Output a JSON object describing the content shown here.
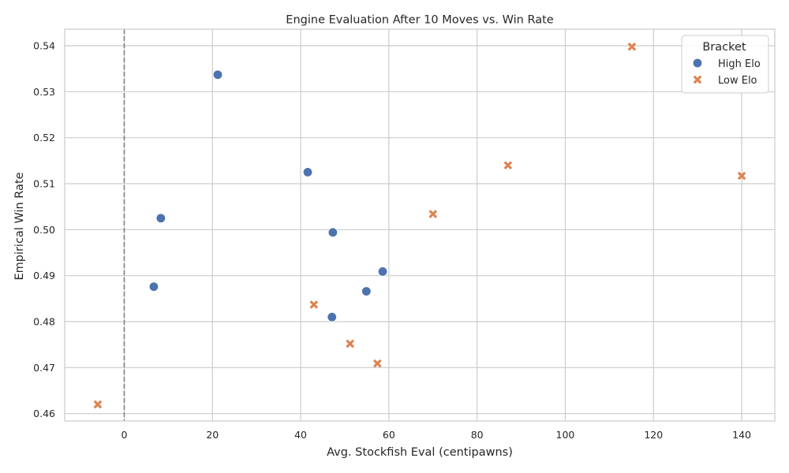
{
  "chart_data": {
    "type": "scatter",
    "title": "Engine Evaluation After 10 Moves vs. Win Rate",
    "xlabel": "Avg. Stockfish Eval (centipawns)",
    "ylabel": "Empirical Win Rate",
    "xlim": [
      -13.5,
      147.5
    ],
    "ylim": [
      0.4584,
      0.5436
    ],
    "xticks": [
      0,
      20,
      40,
      60,
      80,
      100,
      120,
      140
    ],
    "yticks": [
      0.46,
      0.47,
      0.48,
      0.49,
      0.5,
      0.51,
      0.52,
      0.53,
      0.54
    ],
    "xtick_labels": [
      "0",
      "20",
      "40",
      "60",
      "80",
      "100",
      "120",
      "140"
    ],
    "ytick_labels": [
      "0.46",
      "0.47",
      "0.48",
      "0.49",
      "0.50",
      "0.51",
      "0.52",
      "0.53",
      "0.54"
    ],
    "grid": true,
    "reference_line": {
      "x": 0,
      "style": "dashed",
      "color": "#808080"
    },
    "legend": {
      "title": "Bracket",
      "placement": "top-right"
    },
    "series": [
      {
        "name": "High Elo",
        "marker": "circle",
        "color": "#4c72b0",
        "points": [
          {
            "x": 21.2,
            "y": 0.5337
          },
          {
            "x": 41.6,
            "y": 0.5125
          },
          {
            "x": 8.3,
            "y": 0.5025
          },
          {
            "x": 47.3,
            "y": 0.4994
          },
          {
            "x": 58.6,
            "y": 0.4909
          },
          {
            "x": 6.7,
            "y": 0.4876
          },
          {
            "x": 54.9,
            "y": 0.4866
          },
          {
            "x": 47.1,
            "y": 0.481
          }
        ]
      },
      {
        "name": "Low Elo",
        "marker": "x",
        "color": "#dd8452",
        "points": [
          {
            "x": 115.1,
            "y": 0.5398
          },
          {
            "x": 87.0,
            "y": 0.514
          },
          {
            "x": 140.0,
            "y": 0.5117
          },
          {
            "x": 70.0,
            "y": 0.5034
          },
          {
            "x": 43.0,
            "y": 0.4837
          },
          {
            "x": 51.2,
            "y": 0.4752
          },
          {
            "x": 57.4,
            "y": 0.4709
          },
          {
            "x": -6.0,
            "y": 0.462
          }
        ]
      }
    ]
  }
}
